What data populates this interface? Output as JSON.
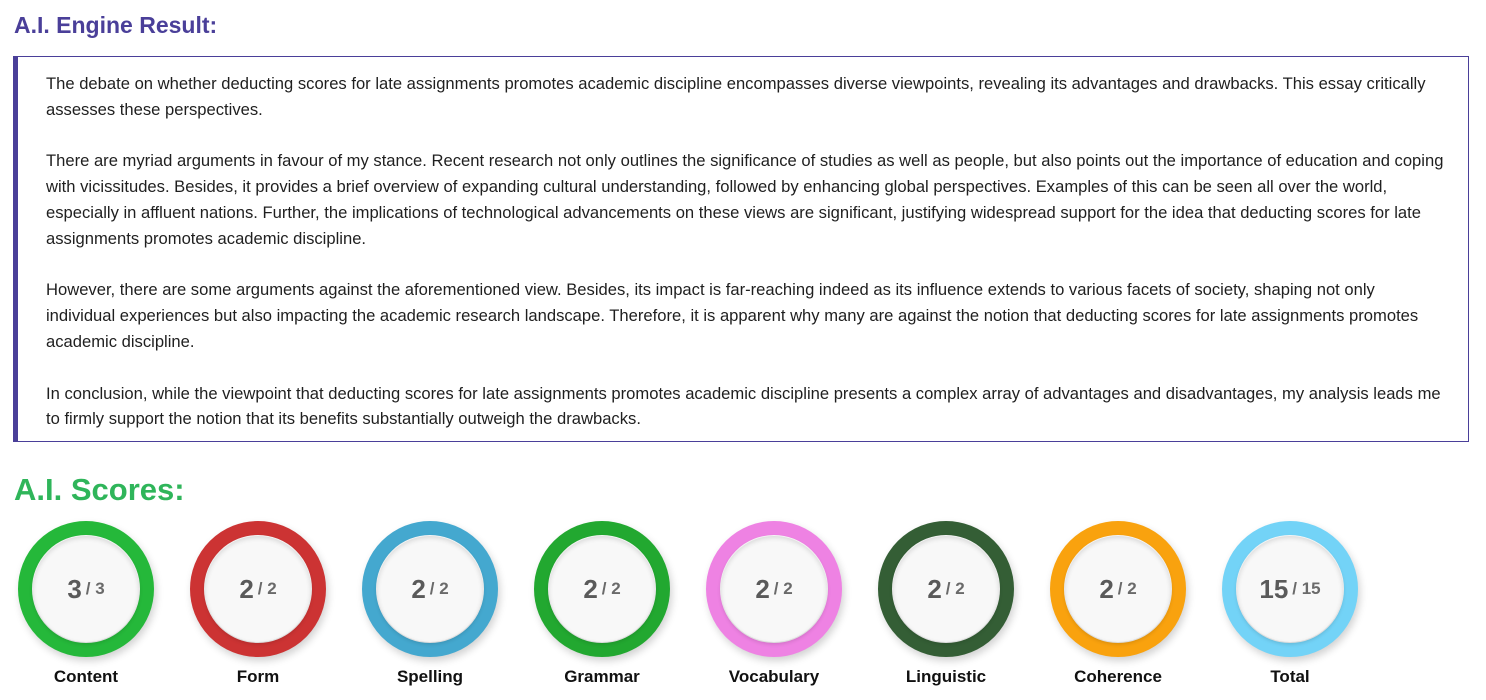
{
  "result_title": "A.I. Engine Result:",
  "essay": {
    "paragraphs": [
      "The debate on whether deducting scores for late assignments promotes academic discipline encompasses diverse viewpoints, revealing its advantages and drawbacks. This essay critically assesses these perspectives.",
      "There are myriad arguments in favour of my stance. Recent research not only outlines the significance of studies as well as people, but also points out the importance of education and coping with vicissitudes. Besides, it provides a brief overview of expanding cultural understanding, followed by enhancing global perspectives. Examples of this can be seen all over the world, especially in affluent nations. Further, the implications of technological advancements on these views are significant, justifying widespread support for the idea that deducting scores for late assignments promotes academic discipline.",
      "However, there are some arguments against the aforementioned view. Besides, its impact is far-reaching indeed as its influence extends to various facets of society, shaping not only individual experiences but also impacting the academic research landscape. Therefore, it is apparent why many are against the notion that deducting scores for late assignments promotes academic discipline.",
      "In conclusion, while the viewpoint that deducting scores for late assignments promotes academic discipline presents a complex array of advantages and disadvantages, my analysis leads me to firmly support the notion that its benefits substantially outweigh the drawbacks."
    ]
  },
  "scores_title": "A.I. Scores:",
  "scores": [
    {
      "label": "Content",
      "score": "3",
      "max": "/ 3",
      "color": "#25b83a"
    },
    {
      "label": "Form",
      "score": "2",
      "max": "/ 2",
      "color": "#cc3333"
    },
    {
      "label": "Spelling",
      "score": "2",
      "max": "/ 2",
      "color": "#44a8cf"
    },
    {
      "label": "Grammar",
      "score": "2",
      "max": "/ 2",
      "color": "#22a830"
    },
    {
      "label": "Vocabulary",
      "score": "2",
      "max": "/ 2",
      "color": "#ee82e3"
    },
    {
      "label": "Linguistic",
      "score": "2",
      "max": "/ 2",
      "color": "#345e35"
    },
    {
      "label": "Coherence",
      "score": "2",
      "max": "/ 2",
      "color": "#f9a20e"
    },
    {
      "label": "Total",
      "score": "15",
      "max": "/ 15",
      "color": "#73d3f7"
    }
  ]
}
